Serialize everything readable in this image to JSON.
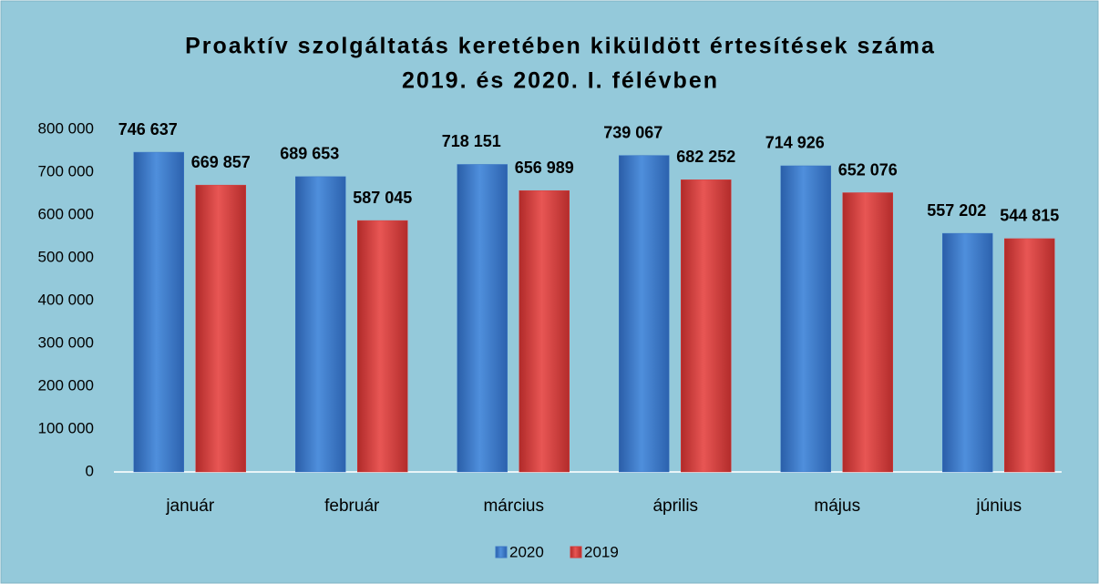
{
  "chart_data": {
    "type": "bar",
    "title": [
      "Proaktív szolgáltatás keretében kiküldött értesítések száma",
      "2019. és 2020. I. félévben"
    ],
    "categories": [
      "január",
      "február",
      "március",
      "április",
      "május",
      "június"
    ],
    "series": [
      {
        "name": "2020",
        "color": "#3b77c6",
        "values": [
          746637,
          689653,
          718151,
          739067,
          714926,
          557202
        ],
        "value_labels": [
          "746 637",
          "689 653",
          "718 151",
          "739 067",
          "714 926",
          "557 202"
        ]
      },
      {
        "name": "2019",
        "color": "#d63b3a",
        "values": [
          669857,
          587045,
          656989,
          682252,
          652076,
          544815
        ],
        "value_labels": [
          "669 857",
          "587 045",
          "656 989",
          "682 252",
          "652 076",
          "544 815"
        ]
      }
    ],
    "ylim": [
      0,
      800000
    ],
    "yticks": [
      {
        "value": 0,
        "label": "0"
      },
      {
        "value": 100000,
        "label": "100 000"
      },
      {
        "value": 200000,
        "label": "200 000"
      },
      {
        "value": 300000,
        "label": "300 000"
      },
      {
        "value": 400000,
        "label": "400 000"
      },
      {
        "value": 500000,
        "label": "500 000"
      },
      {
        "value": 600000,
        "label": "600 000"
      },
      {
        "value": 700000,
        "label": "700 000"
      },
      {
        "value": 800000,
        "label": "800 000"
      }
    ],
    "grid": false,
    "legend": "bottom"
  }
}
